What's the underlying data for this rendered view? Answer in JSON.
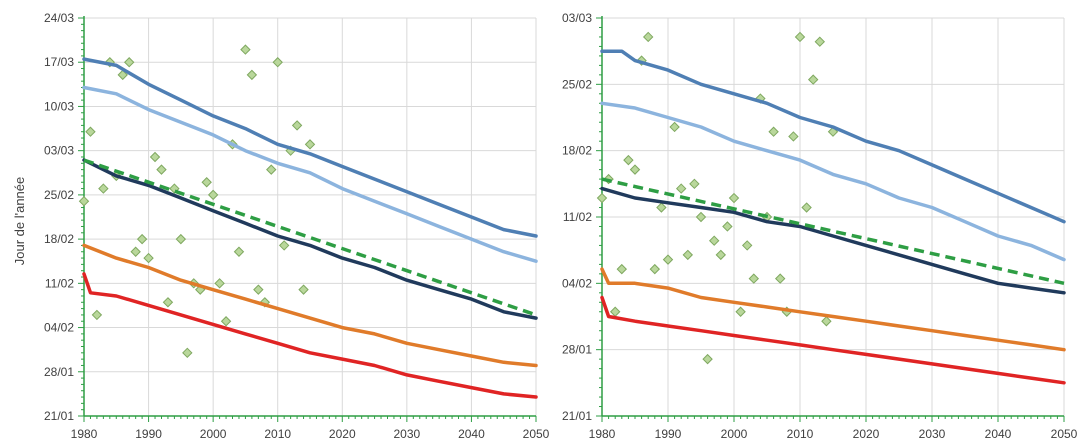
{
  "colors": {
    "q90": "#4F7FB4",
    "q75": "#8CB4DE",
    "median": "#203A5C",
    "trend": "#2E9E44",
    "q25": "#E07B2A",
    "q10": "#E02424",
    "obs_fill": "#B9D79B",
    "obs_stroke": "#7FA860",
    "grid": "#D9D9D9",
    "axis": "#2E9E44"
  },
  "chart_data": [
    {
      "type": "line",
      "ylabel": "Jour de l'année",
      "xlim": [
        1980,
        2050
      ],
      "x_ticks": [
        1980,
        1990,
        2000,
        2010,
        2020,
        2030,
        2040,
        2050
      ],
      "ylim": [
        21,
        84
      ],
      "y_ticks": [
        21,
        28,
        35,
        42,
        49,
        56,
        63,
        70,
        77,
        84
      ],
      "y_tick_labels": [
        "21/01",
        "28/01",
        "04/02",
        "11/02",
        "18/02",
        "25/02",
        "03/03",
        "10/03",
        "17/03",
        "24/03"
      ],
      "series": [
        {
          "key": "q90",
          "style": "solid",
          "points": [
            [
              1980,
              77.5
            ],
            [
              1985,
              76.5
            ],
            [
              1990,
              73.5
            ],
            [
              1995,
              71.0
            ],
            [
              2000,
              68.5
            ],
            [
              2005,
              66.5
            ],
            [
              2010,
              64.0
            ],
            [
              2015,
              62.5
            ],
            [
              2020,
              60.5
            ],
            [
              2025,
              58.5
            ],
            [
              2030,
              56.5
            ],
            [
              2035,
              54.5
            ],
            [
              2040,
              52.5
            ],
            [
              2045,
              50.5
            ],
            [
              2050,
              49.5
            ]
          ]
        },
        {
          "key": "q75",
          "style": "solid",
          "points": [
            [
              1980,
              73.0
            ],
            [
              1985,
              72.0
            ],
            [
              1990,
              69.5
            ],
            [
              1995,
              67.5
            ],
            [
              2000,
              65.5
            ],
            [
              2005,
              63.0
            ],
            [
              2010,
              61.0
            ],
            [
              2015,
              59.5
            ],
            [
              2020,
              57.0
            ],
            [
              2025,
              55.0
            ],
            [
              2030,
              53.0
            ],
            [
              2035,
              51.0
            ],
            [
              2040,
              49.0
            ],
            [
              2045,
              47.0
            ],
            [
              2050,
              45.5
            ]
          ]
        },
        {
          "key": "median",
          "style": "solid",
          "points": [
            [
              1980,
              61.5
            ],
            [
              1985,
              59.0
            ],
            [
              1990,
              57.5
            ],
            [
              1995,
              55.5
            ],
            [
              2000,
              53.5
            ],
            [
              2005,
              51.5
            ],
            [
              2010,
              49.5
            ],
            [
              2015,
              48.0
            ],
            [
              2020,
              46.0
            ],
            [
              2025,
              44.5
            ],
            [
              2030,
              42.5
            ],
            [
              2035,
              41.0
            ],
            [
              2040,
              39.5
            ],
            [
              2045,
              37.5
            ],
            [
              2050,
              36.5
            ]
          ]
        },
        {
          "key": "trend",
          "style": "dashed",
          "points": [
            [
              1980,
              61.5
            ],
            [
              2050,
              37.0
            ]
          ]
        },
        {
          "key": "q25",
          "style": "solid",
          "points": [
            [
              1980,
              48.0
            ],
            [
              1985,
              46.0
            ],
            [
              1990,
              44.5
            ],
            [
              1995,
              42.5
            ],
            [
              2000,
              41.0
            ],
            [
              2005,
              39.5
            ],
            [
              2010,
              38.0
            ],
            [
              2015,
              36.5
            ],
            [
              2020,
              35.0
            ],
            [
              2025,
              34.0
            ],
            [
              2030,
              32.5
            ],
            [
              2035,
              31.5
            ],
            [
              2040,
              30.5
            ],
            [
              2045,
              29.5
            ],
            [
              2050,
              29.0
            ]
          ]
        },
        {
          "key": "q10",
          "style": "solid",
          "points": [
            [
              1980,
              43.5
            ],
            [
              1981,
              40.5
            ],
            [
              1985,
              40.0
            ],
            [
              1990,
              38.5
            ],
            [
              1995,
              37.0
            ],
            [
              2000,
              35.5
            ],
            [
              2005,
              34.0
            ],
            [
              2010,
              32.5
            ],
            [
              2015,
              31.0
            ],
            [
              2020,
              30.0
            ],
            [
              2025,
              29.0
            ],
            [
              2030,
              27.5
            ],
            [
              2035,
              26.5
            ],
            [
              2040,
              25.5
            ],
            [
              2045,
              24.5
            ],
            [
              2050,
              24.0
            ]
          ]
        }
      ],
      "observations": [
        [
          1980,
          55
        ],
        [
          1981,
          66
        ],
        [
          1982,
          37
        ],
        [
          1983,
          57
        ],
        [
          1984,
          77
        ],
        [
          1985,
          59
        ],
        [
          1986,
          75
        ],
        [
          1987,
          77
        ],
        [
          1988,
          47
        ],
        [
          1989,
          49
        ],
        [
          1990,
          46
        ],
        [
          1991,
          62
        ],
        [
          1992,
          60
        ],
        [
          1993,
          39
        ],
        [
          1994,
          57
        ],
        [
          1995,
          49
        ],
        [
          1996,
          31
        ],
        [
          1997,
          42
        ],
        [
          1998,
          41
        ],
        [
          1999,
          58
        ],
        [
          2000,
          56
        ],
        [
          2001,
          42
        ],
        [
          2002,
          36
        ],
        [
          2003,
          64
        ],
        [
          2004,
          47
        ],
        [
          2005,
          79
        ],
        [
          2006,
          75
        ],
        [
          2007,
          41
        ],
        [
          2008,
          39
        ],
        [
          2009,
          60
        ],
        [
          2010,
          77
        ],
        [
          2011,
          48
        ],
        [
          2012,
          63
        ],
        [
          2013,
          67
        ],
        [
          2014,
          41
        ],
        [
          2015,
          64
        ]
      ]
    },
    {
      "type": "line",
      "xlim": [
        1980,
        2050
      ],
      "x_ticks": [
        1980,
        1990,
        2000,
        2010,
        2020,
        2030,
        2040,
        2050
      ],
      "ylim": [
        21,
        63
      ],
      "y_ticks": [
        21,
        28,
        35,
        42,
        49,
        56,
        63
      ],
      "y_tick_labels": [
        "21/01",
        "28/01",
        "04/02",
        "11/02",
        "18/02",
        "25/02",
        "03/03"
      ],
      "series": [
        {
          "key": "q90",
          "style": "solid",
          "points": [
            [
              1980,
              59.5
            ],
            [
              1983,
              59.5
            ],
            [
              1985,
              58.5
            ],
            [
              1990,
              57.5
            ],
            [
              1995,
              56.0
            ],
            [
              2000,
              55.0
            ],
            [
              2005,
              54.0
            ],
            [
              2010,
              52.5
            ],
            [
              2015,
              51.5
            ],
            [
              2020,
              50.0
            ],
            [
              2025,
              49.0
            ],
            [
              2030,
              47.5
            ],
            [
              2035,
              46.0
            ],
            [
              2040,
              44.5
            ],
            [
              2045,
              43.0
            ],
            [
              2050,
              41.5
            ]
          ]
        },
        {
          "key": "q75",
          "style": "solid",
          "points": [
            [
              1980,
              54.0
            ],
            [
              1985,
              53.5
            ],
            [
              1990,
              52.5
            ],
            [
              1995,
              51.5
            ],
            [
              2000,
              50.0
            ],
            [
              2005,
              49.0
            ],
            [
              2010,
              48.0
            ],
            [
              2015,
              46.5
            ],
            [
              2020,
              45.5
            ],
            [
              2025,
              44.0
            ],
            [
              2030,
              43.0
            ],
            [
              2035,
              41.5
            ],
            [
              2040,
              40.0
            ],
            [
              2045,
              39.0
            ],
            [
              2050,
              37.5
            ]
          ]
        },
        {
          "key": "median",
          "style": "solid",
          "points": [
            [
              1980,
              45.0
            ],
            [
              1985,
              44.0
            ],
            [
              1990,
              43.5
            ],
            [
              1995,
              43.0
            ],
            [
              2000,
              42.5
            ],
            [
              2005,
              41.5
            ],
            [
              2010,
              41.0
            ],
            [
              2015,
              40.0
            ],
            [
              2020,
              39.0
            ],
            [
              2025,
              38.0
            ],
            [
              2030,
              37.0
            ],
            [
              2035,
              36.0
            ],
            [
              2040,
              35.0
            ],
            [
              2045,
              34.5
            ],
            [
              2050,
              34.0
            ]
          ]
        },
        {
          "key": "trend",
          "style": "dashed",
          "points": [
            [
              1980,
              46.0
            ],
            [
              2050,
              35.0
            ]
          ]
        },
        {
          "key": "q25",
          "style": "solid",
          "points": [
            [
              1980,
              36.5
            ],
            [
              1981,
              35.0
            ],
            [
              1985,
              35.0
            ],
            [
              1990,
              34.5
            ],
            [
              1995,
              33.5
            ],
            [
              2000,
              33.0
            ],
            [
              2005,
              32.5
            ],
            [
              2010,
              32.0
            ],
            [
              2015,
              31.5
            ],
            [
              2020,
              31.0
            ],
            [
              2025,
              30.5
            ],
            [
              2030,
              30.0
            ],
            [
              2035,
              29.5
            ],
            [
              2040,
              29.0
            ],
            [
              2045,
              28.5
            ],
            [
              2050,
              28.0
            ]
          ]
        },
        {
          "key": "q10",
          "style": "solid",
          "points": [
            [
              1980,
              33.5
            ],
            [
              1981,
              31.5
            ],
            [
              1985,
              31.0
            ],
            [
              1990,
              30.5
            ],
            [
              1995,
              30.0
            ],
            [
              2000,
              29.5
            ],
            [
              2005,
              29.0
            ],
            [
              2010,
              28.5
            ],
            [
              2015,
              28.0
            ],
            [
              2020,
              27.5
            ],
            [
              2025,
              27.0
            ],
            [
              2030,
              26.5
            ],
            [
              2035,
              26.0
            ],
            [
              2040,
              25.5
            ],
            [
              2045,
              25.0
            ],
            [
              2050,
              24.5
            ]
          ]
        }
      ],
      "observations": [
        [
          1980,
          44.0
        ],
        [
          1981,
          46.0
        ],
        [
          1982,
          32.0
        ],
        [
          1983,
          36.5
        ],
        [
          1984,
          48.0
        ],
        [
          1985,
          47.0
        ],
        [
          1986,
          58.5
        ],
        [
          1987,
          61.0
        ],
        [
          1988,
          36.5
        ],
        [
          1989,
          43.0
        ],
        [
          1990,
          37.5
        ],
        [
          1991,
          51.5
        ],
        [
          1992,
          45.0
        ],
        [
          1993,
          38.0
        ],
        [
          1994,
          45.5
        ],
        [
          1995,
          42.0
        ],
        [
          1996,
          27.0
        ],
        [
          1997,
          39.5
        ],
        [
          1998,
          38.0
        ],
        [
          1999,
          41.0
        ],
        [
          2000,
          44.0
        ],
        [
          2001,
          32.0
        ],
        [
          2002,
          39.0
        ],
        [
          2003,
          35.5
        ],
        [
          2004,
          54.5
        ],
        [
          2005,
          42.0
        ],
        [
          2006,
          51.0
        ],
        [
          2007,
          35.5
        ],
        [
          2008,
          32.0
        ],
        [
          2009,
          50.5
        ],
        [
          2010,
          61.0
        ],
        [
          2011,
          43.0
        ],
        [
          2012,
          56.5
        ],
        [
          2013,
          60.5
        ],
        [
          2014,
          31.0
        ],
        [
          2015,
          51.0
        ]
      ]
    }
  ]
}
